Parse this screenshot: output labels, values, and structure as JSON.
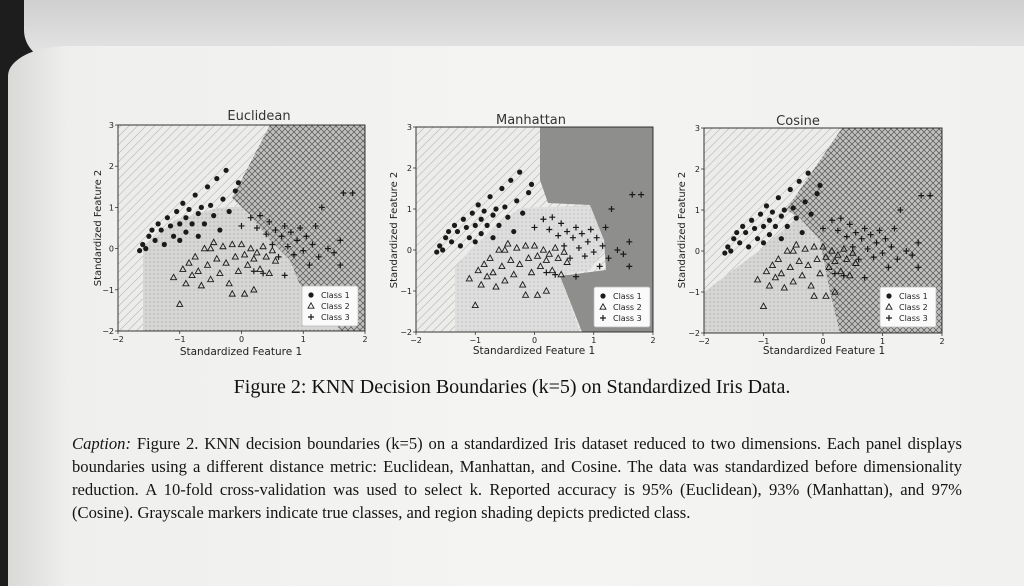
{
  "figure_title": "Figure 2: KNN Decision Boundaries (k=5) on Standardized Iris Data.",
  "caption": {
    "label": "Caption:",
    "text": "Figure 2. KNN decision boundaries (k=5) on a standardized Iris dataset reduced to two dimensions. Each panel displays boundaries using a different distance metric: Euclidean, Manhattan, and Cosine. The data was standardized before dimensionality reduction. A 10-fold cross-validation was used to select k. Reported accuracy is 95% (Euclidean), 93% (Manhattan), and 97% (Cosine). Grayscale markers indicate true classes, and region shading depicts predicted class."
  },
  "chart_data": [
    {
      "type": "scatter",
      "title": "Euclidean",
      "xlabel": "Standardized Feature 1",
      "ylabel": "Standardized Feature 2",
      "xlim": [
        -2,
        2
      ],
      "ylim": [
        -2,
        3
      ],
      "xticks": [
        "−2",
        "−1",
        "0",
        "1",
        "2"
      ],
      "yticks": [
        "−2",
        "−1",
        "0",
        "1",
        "2",
        "3"
      ],
      "legend": "bottom-right",
      "legend_entries": [
        "Class 1",
        "Class 2",
        "Class 3"
      ],
      "colors": {
        "class1": "#d8d8d8",
        "class2": "#c4c4c4",
        "class3": "#a8a8a8"
      }
    },
    {
      "type": "scatter",
      "title": "Manhattan",
      "xlabel": "Standardized Feature 1",
      "ylabel": "Standardized Feature 2",
      "xlim": [
        -2,
        2
      ],
      "ylim": [
        -2,
        3
      ],
      "xticks": [
        "−2",
        "−1",
        "0",
        "1",
        "2"
      ],
      "yticks": [
        "−2",
        "−1",
        "0",
        "1",
        "2",
        "3"
      ],
      "legend": "bottom-right",
      "legend_entries": [
        "Class 1",
        "Class 2",
        "Class 3"
      ],
      "colors": {
        "class1": "#e4e4e4",
        "class2": "#cfcfcf",
        "class3": "#8f8f8f"
      }
    },
    {
      "type": "scatter",
      "title": "Cosine",
      "xlabel": "Standardized Feature 1",
      "ylabel": "Standardized Feature 2",
      "xlim": [
        -2,
        2
      ],
      "ylim": [
        -2,
        3
      ],
      "xticks": [
        "−2",
        "−1",
        "0",
        "1",
        "2"
      ],
      "yticks": [
        "−2",
        "−1",
        "0",
        "1",
        "2",
        "3"
      ],
      "legend": "bottom-right",
      "legend_entries": [
        "Class 1",
        "Class 2",
        "Class 3"
      ],
      "colors": {
        "class1": "#dcdcdc",
        "class2": "#c9c9c9",
        "class3": "#9c9c9c"
      }
    }
  ],
  "points": {
    "class1": [
      [
        -1.6,
        0.1
      ],
      [
        -1.55,
        0.0
      ],
      [
        -1.5,
        0.3
      ],
      [
        -1.45,
        0.45
      ],
      [
        -1.4,
        0.2
      ],
      [
        -1.35,
        0.6
      ],
      [
        -1.3,
        0.45
      ],
      [
        -1.25,
        0.1
      ],
      [
        -1.2,
        0.75
      ],
      [
        -1.15,
        0.55
      ],
      [
        -1.1,
        0.3
      ],
      [
        -1.05,
        0.9
      ],
      [
        -1.0,
        0.6
      ],
      [
        -1.0,
        0.2
      ],
      [
        -0.95,
        1.1
      ],
      [
        -0.9,
        0.75
      ],
      [
        -0.9,
        0.4
      ],
      [
        -0.85,
        0.95
      ],
      [
        -0.8,
        0.6
      ],
      [
        -0.75,
        1.3
      ],
      [
        -0.7,
        0.85
      ],
      [
        -0.7,
        0.3
      ],
      [
        -0.65,
        1.0
      ],
      [
        -0.6,
        0.6
      ],
      [
        -0.55,
        1.5
      ],
      [
        -0.5,
        1.05
      ],
      [
        -0.45,
        0.8
      ],
      [
        -0.4,
        1.7
      ],
      [
        -0.35,
        0.45
      ],
      [
        -0.3,
        1.2
      ],
      [
        -0.25,
        1.9
      ],
      [
        -0.2,
        0.9
      ],
      [
        -0.1,
        1.4
      ],
      [
        -0.05,
        1.6
      ],
      [
        -1.65,
        -0.05
      ]
    ],
    "class2": [
      [
        -1.1,
        -0.7
      ],
      [
        -1.0,
        -1.35
      ],
      [
        -0.95,
        -0.5
      ],
      [
        -0.9,
        -0.85
      ],
      [
        -0.85,
        -0.35
      ],
      [
        -0.8,
        -0.65
      ],
      [
        -0.75,
        -0.2
      ],
      [
        -0.7,
        -0.55
      ],
      [
        -0.65,
        -0.9
      ],
      [
        -0.6,
        0.0
      ],
      [
        -0.55,
        -0.4
      ],
      [
        -0.5,
        -0.75
      ],
      [
        -0.45,
        0.15
      ],
      [
        -0.4,
        -0.25
      ],
      [
        -0.35,
        -0.6
      ],
      [
        -0.3,
        0.05
      ],
      [
        -0.25,
        -0.35
      ],
      [
        -0.2,
        -0.85
      ],
      [
        -0.15,
        0.1
      ],
      [
        -0.1,
        -0.2
      ],
      [
        -0.05,
        -0.55
      ],
      [
        0.0,
        0.1
      ],
      [
        0.05,
        -0.15
      ],
      [
        0.1,
        -0.4
      ],
      [
        0.15,
        0.0
      ],
      [
        0.2,
        -0.25
      ],
      [
        0.25,
        -0.1
      ],
      [
        0.3,
        -0.5
      ],
      [
        0.35,
        0.05
      ],
      [
        0.4,
        -0.2
      ],
      [
        0.45,
        -0.6
      ],
      [
        0.5,
        -0.05
      ],
      [
        0.05,
        -1.1
      ],
      [
        0.2,
        -1.0
      ],
      [
        0.55,
        -0.3
      ],
      [
        -0.5,
        0.0
      ],
      [
        -0.15,
        -1.1
      ]
    ],
    "class3": [
      [
        0.0,
        0.55
      ],
      [
        0.15,
        0.75
      ],
      [
        0.25,
        0.5
      ],
      [
        0.3,
        0.8
      ],
      [
        0.4,
        0.35
      ],
      [
        0.45,
        0.65
      ],
      [
        0.5,
        0.1
      ],
      [
        0.55,
        0.45
      ],
      [
        0.6,
        -0.2
      ],
      [
        0.65,
        0.3
      ],
      [
        0.7,
        0.55
      ],
      [
        0.75,
        0.05
      ],
      [
        0.8,
        0.4
      ],
      [
        0.85,
        -0.15
      ],
      [
        0.9,
        0.2
      ],
      [
        0.95,
        0.5
      ],
      [
        1.0,
        -0.05
      ],
      [
        1.05,
        0.3
      ],
      [
        1.1,
        -0.4
      ],
      [
        1.15,
        0.1
      ],
      [
        1.2,
        0.55
      ],
      [
        1.25,
        -0.2
      ],
      [
        1.3,
        1.0
      ],
      [
        1.4,
        0.0
      ],
      [
        1.5,
        -0.1
      ],
      [
        1.6,
        -0.4
      ],
      [
        1.65,
        1.35
      ],
      [
        1.8,
        1.35
      ],
      [
        0.35,
        -0.6
      ],
      [
        0.7,
        -0.65
      ],
      [
        1.6,
        0.2
      ],
      [
        0.2,
        -0.55
      ]
    ]
  }
}
